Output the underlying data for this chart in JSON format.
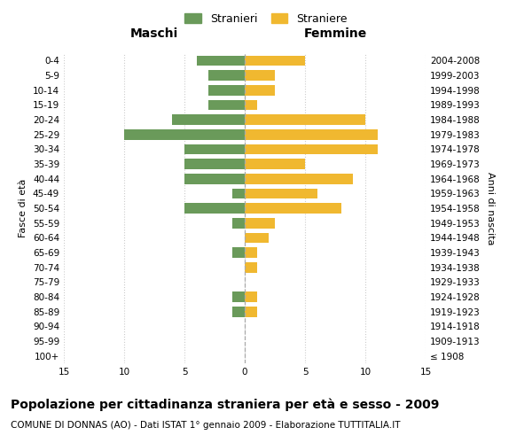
{
  "age_groups": [
    "100+",
    "95-99",
    "90-94",
    "85-89",
    "80-84",
    "75-79",
    "70-74",
    "65-69",
    "60-64",
    "55-59",
    "50-54",
    "45-49",
    "40-44",
    "35-39",
    "30-34",
    "25-29",
    "20-24",
    "15-19",
    "10-14",
    "5-9",
    "0-4"
  ],
  "birth_years": [
    "≤ 1908",
    "1909-1913",
    "1914-1918",
    "1919-1923",
    "1924-1928",
    "1929-1933",
    "1934-1938",
    "1939-1943",
    "1944-1948",
    "1949-1953",
    "1954-1958",
    "1959-1963",
    "1964-1968",
    "1969-1973",
    "1974-1978",
    "1979-1983",
    "1984-1988",
    "1989-1993",
    "1994-1998",
    "1999-2003",
    "2004-2008"
  ],
  "stranieri": [
    0,
    0,
    0,
    1,
    1,
    0,
    0,
    1,
    0,
    1,
    5,
    1,
    5,
    5,
    5,
    10,
    6,
    3,
    3,
    3,
    4
  ],
  "straniere": [
    0,
    0,
    0,
    1,
    1,
    0,
    1,
    1,
    2,
    2.5,
    8,
    6,
    9,
    5,
    11,
    11,
    10,
    1,
    2.5,
    2.5,
    5
  ],
  "male_color": "#6a9a5a",
  "female_color": "#f0b830",
  "xlim": 15,
  "xlabel_left": "Maschi",
  "xlabel_right": "Femmine",
  "ylabel_left": "Fasce di età",
  "ylabel_right": "Anni di nascita",
  "title": "Popolazione per cittadinanza straniera per età e sesso - 2009",
  "subtitle": "COMUNE DI DONNAS (AO) - Dati ISTAT 1° gennaio 2009 - Elaborazione TUTTITALIA.IT",
  "legend_stranieri": "Stranieri",
  "legend_straniere": "Straniere",
  "background_color": "#ffffff",
  "grid_color": "#cccccc",
  "title_fontsize": 10,
  "subtitle_fontsize": 7.5,
  "axis_label_fontsize": 8,
  "tick_fontsize": 7.5,
  "header_fontsize": 10
}
